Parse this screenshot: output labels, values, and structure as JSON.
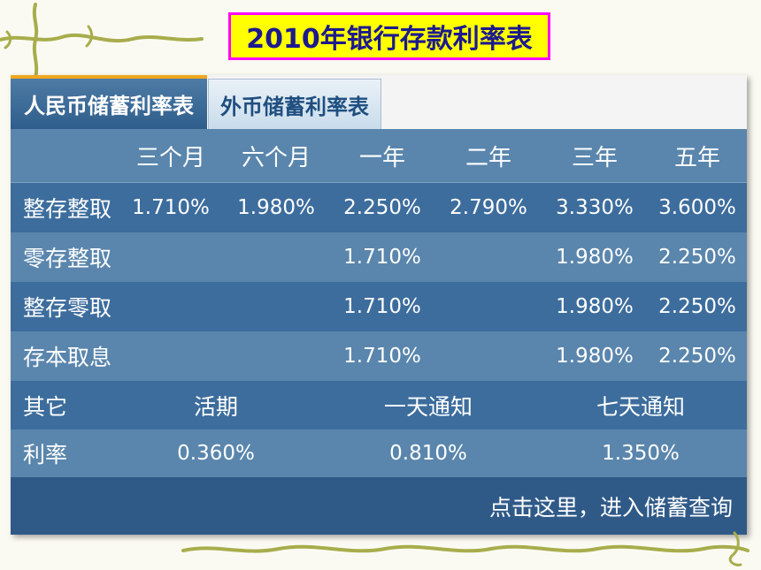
{
  "title": "2010年银行存款利率表",
  "tabs": [
    {
      "label": "人民币储蓄利率表",
      "active": true
    },
    {
      "label": "外币储蓄利率表",
      "active": false
    }
  ],
  "table": {
    "headers": [
      "三个月",
      "六个月",
      "一年",
      "二年",
      "三年",
      "五年"
    ],
    "rows": [
      {
        "label": "整存整取",
        "values": [
          "1.710%",
          "1.980%",
          "2.250%",
          "2.790%",
          "3.330%",
          "3.600%"
        ]
      },
      {
        "label": "零存整取",
        "values": [
          "",
          "",
          "1.710%",
          "",
          "1.980%",
          "2.250%"
        ]
      },
      {
        "label": "整存零取",
        "values": [
          "",
          "",
          "1.710%",
          "",
          "1.980%",
          "2.250%"
        ]
      },
      {
        "label": "存本取息",
        "values": [
          "",
          "",
          "1.710%",
          "",
          "1.980%",
          "2.250%"
        ]
      }
    ]
  },
  "other": {
    "label": "其它",
    "rate_label": "利率",
    "items": [
      {
        "name": "活期",
        "rate": "0.360%"
      },
      {
        "name": "一天通知",
        "rate": "0.810%"
      },
      {
        "name": "七天通知",
        "rate": "1.350%"
      }
    ]
  },
  "footer": {
    "link_label": "点击这里，进入储蓄查询"
  },
  "colors": {
    "panel": "#5a86ad",
    "row_dark": "#3d6d9d",
    "footer": "#2f5a88",
    "title_bg": "#ffff00",
    "title_border": "#ff00ff",
    "title_text": "#1d1a8e",
    "tab_accent": "#f0a820"
  }
}
